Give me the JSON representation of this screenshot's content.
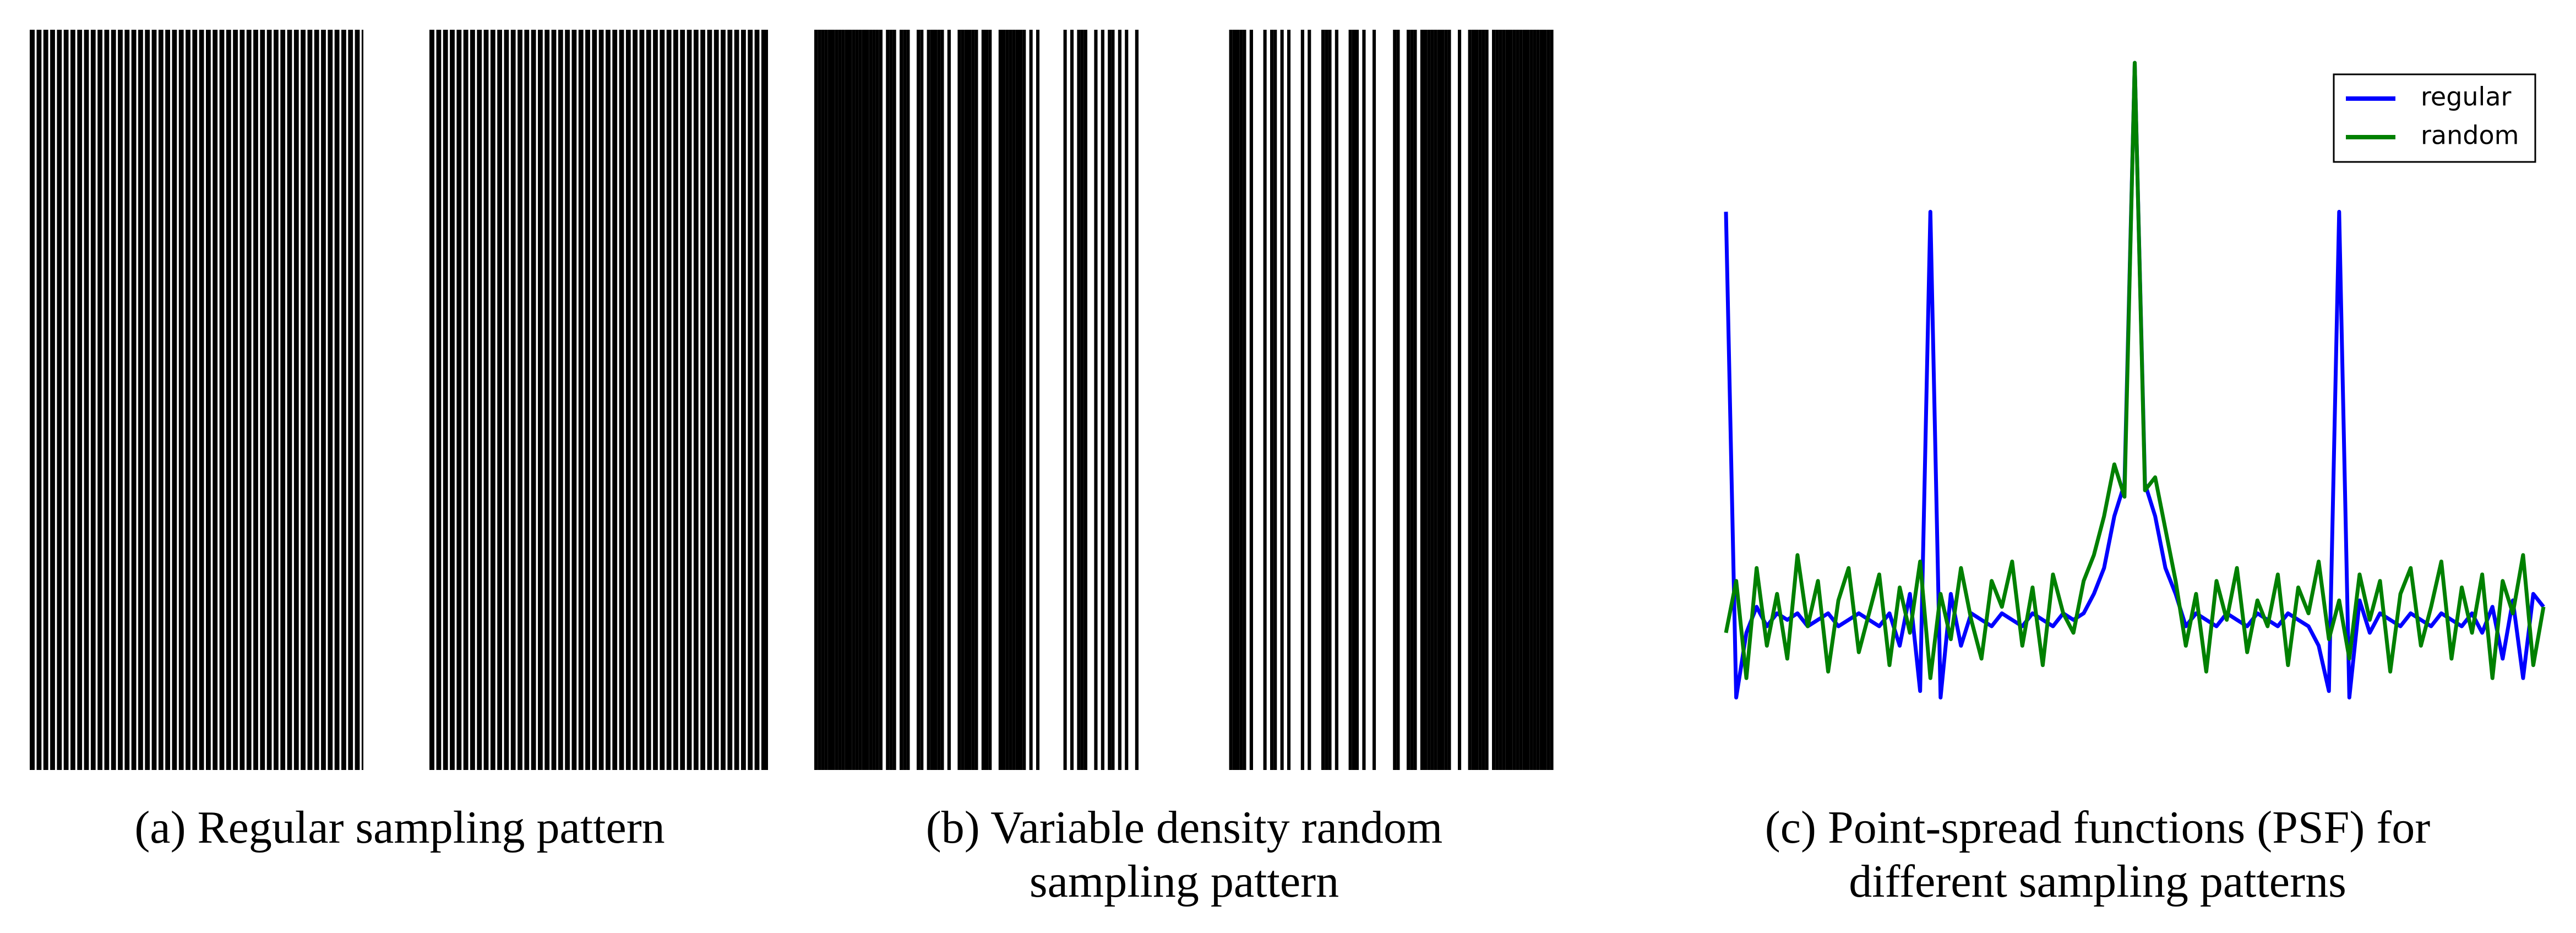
{
  "captions": [
    {
      "lines": [
        "(a) Regular sampling pattern"
      ]
    },
    {
      "lines": [
        "(b) Variable density random",
        "sampling pattern"
      ]
    },
    {
      "lines": [
        "(c) Point-spread functions (PSF) for",
        "different sampling patterns"
      ]
    }
  ],
  "chart_data": {
    "type": "line",
    "series": [
      {
        "name": "regular",
        "color": "#0000ff",
        "values": [
          0.77,
          0.02,
          0.12,
          0.16,
          0.13,
          0.15,
          0.14,
          0.15,
          0.13,
          0.14,
          0.15,
          0.13,
          0.14,
          0.15,
          0.14,
          0.13,
          0.15,
          0.1,
          0.18,
          0.03,
          0.77,
          0.02,
          0.18,
          0.1,
          0.15,
          0.14,
          0.13,
          0.15,
          0.14,
          0.13,
          0.15,
          0.14,
          0.13,
          0.15,
          0.14,
          0.15,
          0.18,
          0.22,
          0.3,
          0.35,
          1.0,
          0.35,
          0.3,
          0.22,
          0.18,
          0.13,
          0.15,
          0.14,
          0.13,
          0.15,
          0.14,
          0.13,
          0.15,
          0.14,
          0.13,
          0.15,
          0.14,
          0.13,
          0.1,
          0.03,
          0.77,
          0.02,
          0.17,
          0.12,
          0.15,
          0.14,
          0.13,
          0.15,
          0.14,
          0.13,
          0.15,
          0.14,
          0.13,
          0.15,
          0.12,
          0.16,
          0.08,
          0.17,
          0.05,
          0.18,
          0.16
        ]
      },
      {
        "name": "random",
        "color": "#008000",
        "values": [
          0.12,
          0.2,
          0.05,
          0.22,
          0.1,
          0.18,
          0.08,
          0.24,
          0.13,
          0.2,
          0.06,
          0.17,
          0.22,
          0.09,
          0.15,
          0.21,
          0.07,
          0.19,
          0.12,
          0.23,
          0.05,
          0.18,
          0.11,
          0.22,
          0.14,
          0.08,
          0.2,
          0.16,
          0.23,
          0.1,
          0.19,
          0.07,
          0.21,
          0.15,
          0.12,
          0.2,
          0.24,
          0.3,
          0.38,
          0.33,
          1.0,
          0.34,
          0.36,
          0.28,
          0.2,
          0.1,
          0.18,
          0.06,
          0.2,
          0.14,
          0.22,
          0.09,
          0.17,
          0.13,
          0.21,
          0.07,
          0.19,
          0.15,
          0.23,
          0.11,
          0.17,
          0.08,
          0.21,
          0.14,
          0.2,
          0.06,
          0.18,
          0.22,
          0.1,
          0.16,
          0.23,
          0.08,
          0.19,
          0.12,
          0.21,
          0.05,
          0.2,
          0.15,
          0.24,
          0.07,
          0.16
        ]
      }
    ],
    "ylim": [
      0,
      1
    ],
    "legend": "upper right"
  }
}
